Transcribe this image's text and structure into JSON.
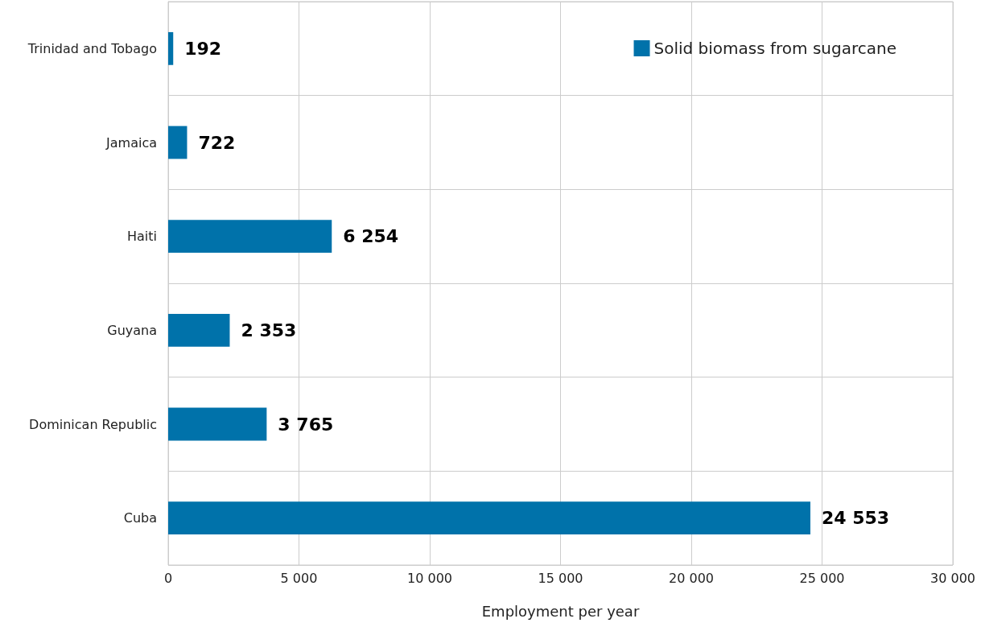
{
  "chart_data": {
    "type": "bar",
    "orientation": "horizontal",
    "xlabel": "Employment per year",
    "categories": [
      "Trinidad and Tobago",
      "Jamaica",
      "Haiti",
      "Guyana",
      "Dominican Republic",
      "Cuba"
    ],
    "series": [
      {
        "name": "Solid biomass from sugarcane",
        "color": "#0072aa",
        "values": [
          192,
          722,
          6254,
          2353,
          3765,
          24553
        ],
        "value_labels": [
          "192",
          "722",
          "6 254",
          "2 353",
          "3 765",
          "24 553"
        ]
      }
    ],
    "xlim": [
      0,
      30000
    ],
    "xticks": [
      0,
      {
        "value": 5000,
        "label": "5 000"
      },
      {
        "value": 10000,
        "label": "10 000"
      },
      {
        "value": 15000,
        "label": "15 000"
      },
      {
        "value": 20000,
        "label": "20 000"
      },
      {
        "value": 25000,
        "label": "25 000"
      },
      {
        "value": 30000,
        "label": "30 000"
      }
    ],
    "grid": true,
    "legend": "top right"
  }
}
